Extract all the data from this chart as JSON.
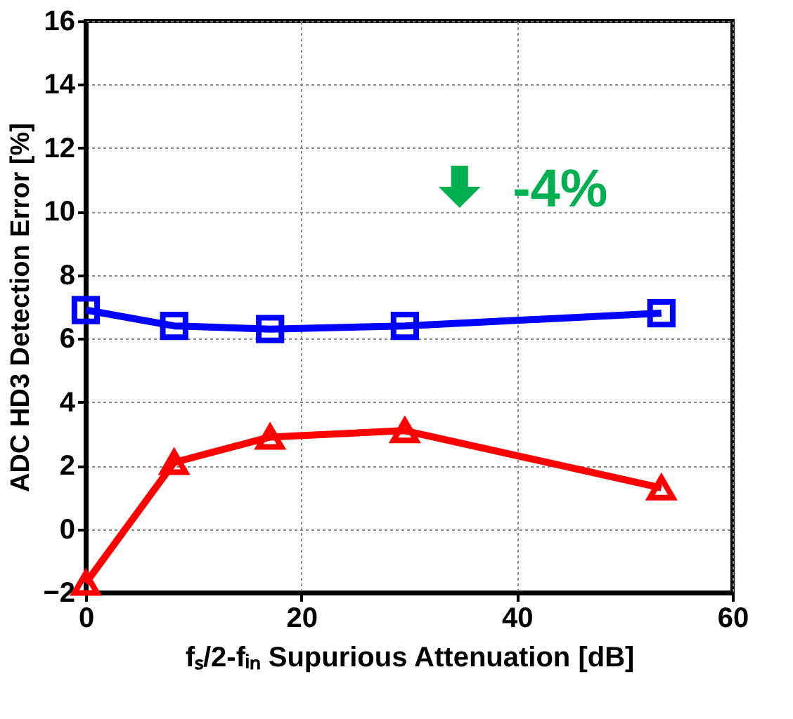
{
  "chart_data": {
    "type": "line",
    "xlabel": "fₛ/2-fᵢₙ Supurious Attenuation [dB]",
    "ylabel": "ADC HD3 Detection Error [%]",
    "series": [
      {
        "color": "#0000ff",
        "marker": "square",
        "line_style": "solid",
        "x": [
          0,
          8.2,
          17.1,
          29.6,
          53.4
        ],
        "values": [
          6.9,
          6.4,
          6.3,
          6.4,
          6.8
        ]
      },
      {
        "color": "#ff0000",
        "marker": "triangle",
        "line_style": "solid",
        "x": [
          0,
          8.2,
          17.1,
          29.6,
          53.4
        ],
        "values": [
          -1.7,
          2.1,
          2.9,
          3.1,
          1.3
        ]
      }
    ],
    "xlim": [
      0,
      60
    ],
    "xticks": [
      0,
      20,
      40,
      60
    ],
    "ylim": [
      -2,
      16
    ],
    "yticks": [
      -2,
      0,
      2,
      4,
      6,
      8,
      10,
      12,
      14,
      16
    ],
    "grid": true,
    "annotations": [
      "-4%"
    ]
  }
}
